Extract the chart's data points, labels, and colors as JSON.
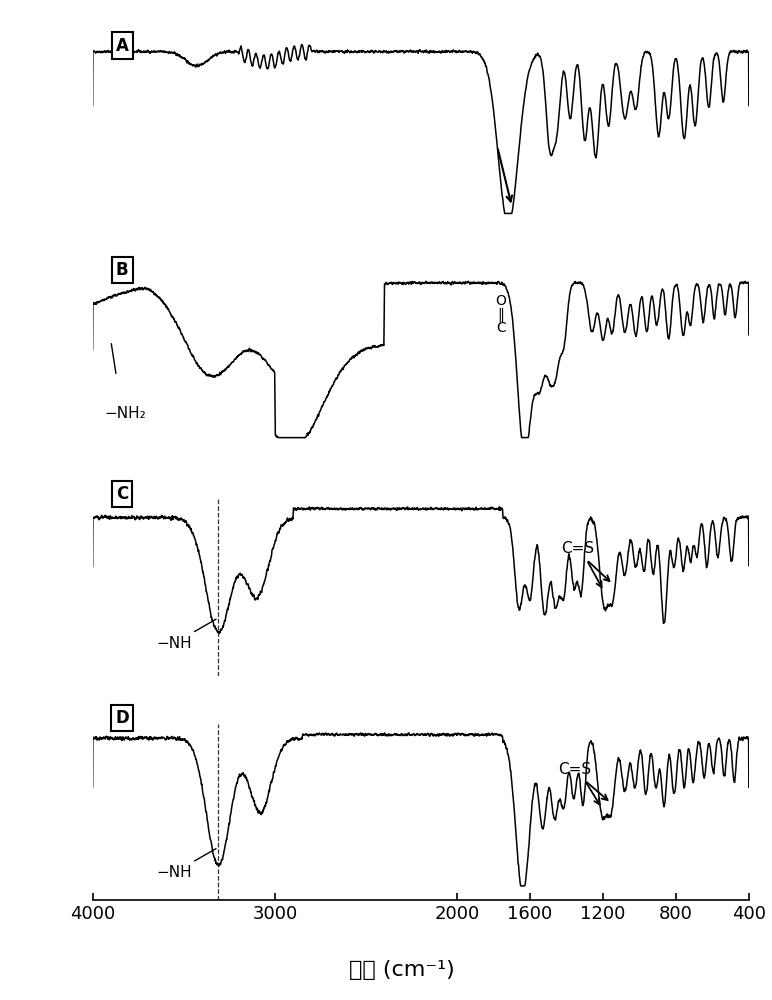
{
  "title": "",
  "xlabel": "波数 (cm⁻¹)",
  "xmin": 400,
  "xmax": 4000,
  "panels": [
    "A",
    "B",
    "C",
    "D"
  ],
  "background_color": "#ffffff",
  "line_color": "#000000",
  "label_fontsize": 16,
  "tick_fontsize": 13
}
